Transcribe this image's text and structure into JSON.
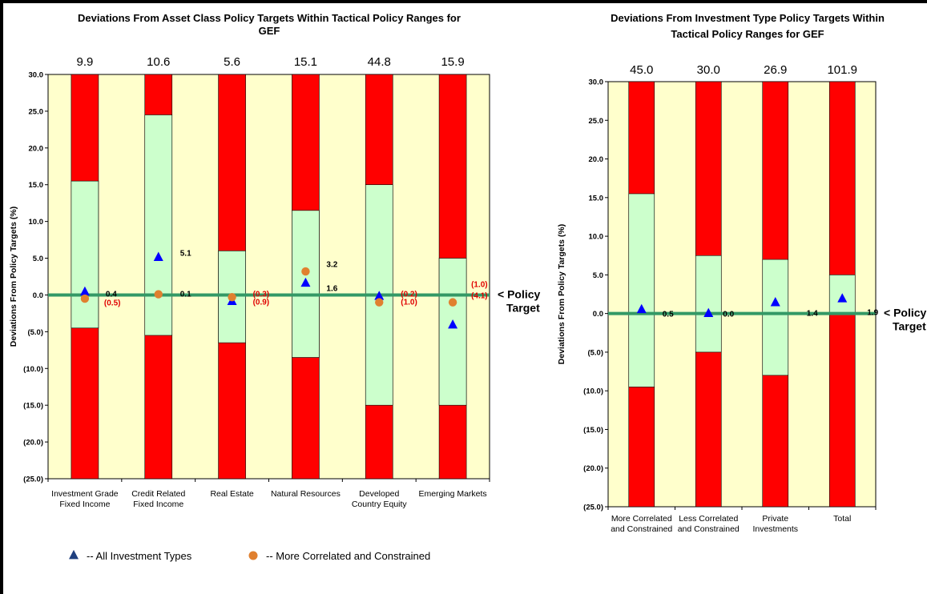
{
  "colors": {
    "plot_bg": "#ffffcc",
    "red_band": "#ff0000",
    "green_band": "#ccffcc",
    "policy_line": "#339966",
    "triangle": "#0000ff",
    "circle": "#e0802f",
    "negative_label": "#e00000",
    "legend_triangle": "#1f3f7f"
  },
  "chart_data": [
    {
      "type": "range-bar",
      "title": "Deviations From Asset Class Policy Targets Within Tactical Policy Ranges for GEF",
      "ylabel": "Deviations From Policy Targets (%)",
      "ylim": [
        -25,
        30
      ],
      "yticks": [
        30,
        25,
        20,
        15,
        10,
        5,
        0,
        -5,
        -10,
        -15,
        -20,
        -25
      ],
      "ytick_labels": [
        "30.0",
        "25.0",
        "20.0",
        "15.0",
        "10.0",
        "5.0",
        "0.0",
        "(5.0)",
        "(10.0)",
        "(15.0)",
        "(20.0)",
        "(25.0)"
      ],
      "categories": [
        [
          "Investment Grade",
          "Fixed Income"
        ],
        [
          "Credit Related",
          "Fixed Income"
        ],
        [
          "Real Estate"
        ],
        [
          "Natural Resources"
        ],
        [
          "Developed",
          "Country Equity"
        ],
        [
          "Emerging Markets"
        ]
      ],
      "top_values": [
        "9.9",
        "10.6",
        "5.6",
        "15.1",
        "44.8",
        "15.9"
      ],
      "range_low": [
        -4.5,
        -5.5,
        -6.5,
        -8.5,
        -15.0,
        -15.0
      ],
      "range_high": [
        15.5,
        24.5,
        6.0,
        11.5,
        15.0,
        5.0
      ],
      "series": [
        {
          "name": "All Investment Types",
          "marker": "triangle",
          "values": [
            0.4,
            5.1,
            -0.9,
            1.6,
            -0.2,
            -4.1
          ],
          "labels": [
            "0.4",
            "5.1",
            "(0.9)",
            "1.6",
            "(0.2)",
            "(4.1)"
          ]
        },
        {
          "name": "More Correlated and Constrained",
          "marker": "circle",
          "values": [
            -0.5,
            0.1,
            -0.3,
            3.2,
            -1.0,
            -1.0
          ],
          "labels": [
            "(0.5)",
            "0.1",
            "(0.3)",
            "3.2",
            "(1.0)",
            "(1.0)"
          ]
        }
      ],
      "policy_label": [
        "< Policy",
        "Target"
      ],
      "legend": [
        {
          "marker": "triangle",
          "text": "--  All Investment Types"
        },
        {
          "marker": "circle",
          "text": "-- More Correlated and Constrained"
        }
      ]
    },
    {
      "type": "range-bar",
      "title": "Deviations From Investment Type Policy Targets Within Tactical Policy Ranges for GEF",
      "ylabel": "Deviations From Policy Targets (%)",
      "ylim": [
        -25,
        30
      ],
      "yticks": [
        30,
        25,
        20,
        15,
        10,
        5,
        0,
        -5,
        -10,
        -15,
        -20,
        -25
      ],
      "ytick_labels": [
        "30.0",
        "25.0",
        "20.0",
        "15.0",
        "10.0",
        "5.0",
        "0.0",
        "(5.0)",
        "(10.0)",
        "(15.0)",
        "(20.0)",
        "(25.0)"
      ],
      "categories": [
        [
          "More Correlated",
          "and Constrained"
        ],
        [
          "Less Correlated",
          "and Constrained"
        ],
        [
          "Private",
          "Investments"
        ],
        [
          "Total"
        ]
      ],
      "top_values": [
        "45.0",
        "30.0",
        "26.9",
        "101.9"
      ],
      "range_low": [
        -9.5,
        -5.0,
        -8.0,
        0.0
      ],
      "range_high": [
        15.5,
        7.5,
        7.0,
        5.0
      ],
      "series": [
        {
          "name": "All Investment Types",
          "marker": "triangle",
          "values": [
            0.5,
            0.0,
            1.4,
            1.9
          ],
          "labels": [
            "0.5",
            "0.0",
            "1.4",
            "1.9"
          ]
        }
      ],
      "policy_label": [
        "< Policy",
        "Target"
      ]
    }
  ]
}
